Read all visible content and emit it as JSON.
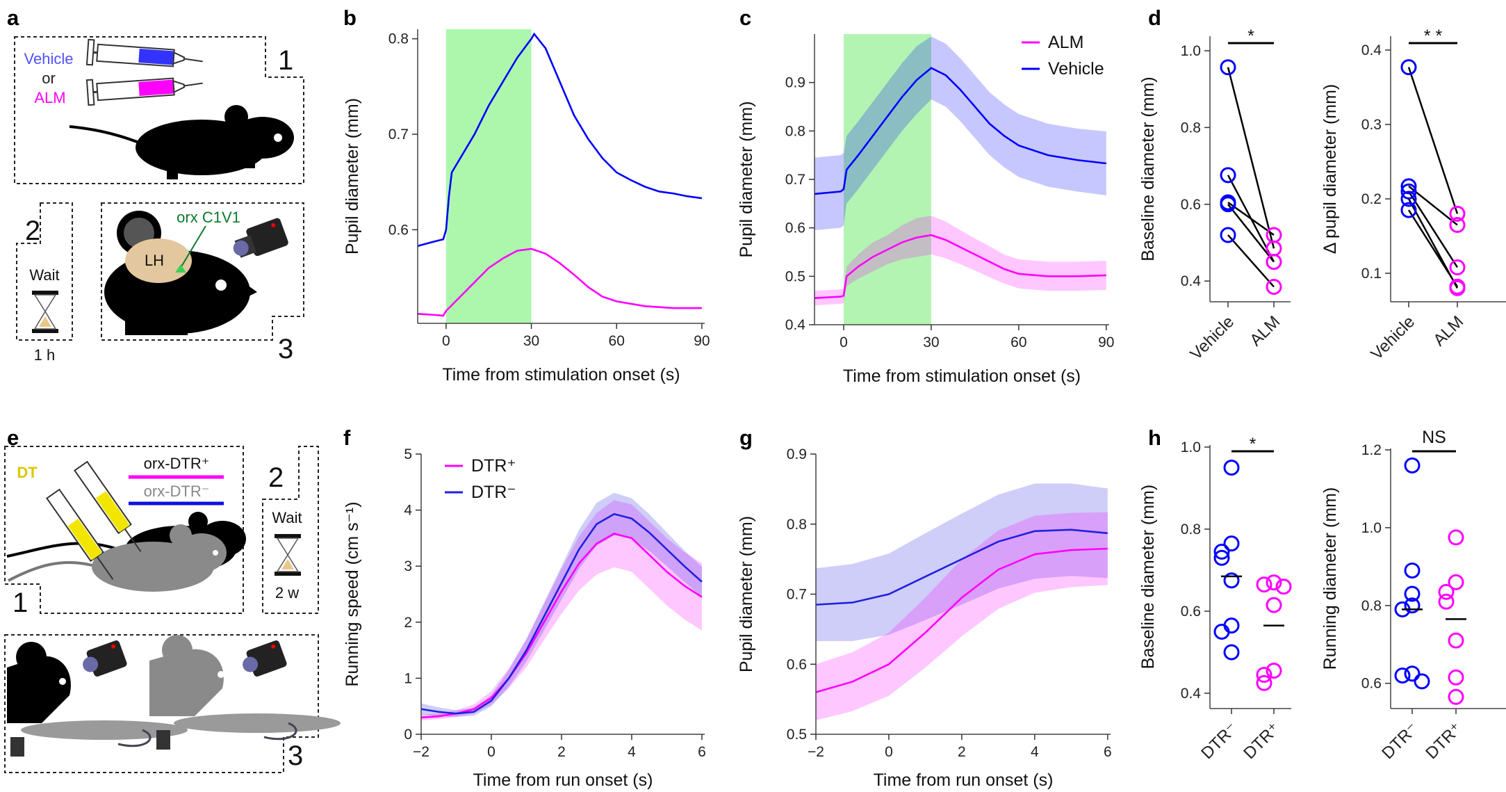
{
  "panel_letters": [
    "a",
    "b",
    "c",
    "d",
    "e",
    "f",
    "g",
    "h"
  ],
  "panel_a": {
    "step1_number": "1",
    "vehicle": "Vehicle",
    "or": "or",
    "alm": "ALM",
    "step2_number": "2",
    "wait": "Wait",
    "wait_time": "1 h",
    "step3_number": "3",
    "virus": "orx C1V1",
    "region": "LH",
    "colors": {
      "vehicle": "#5050ff",
      "alm": "#ff00ff",
      "virus": "#0a7a2a",
      "brain": "#e3c79e"
    }
  },
  "panel_e": {
    "drug": "DT",
    "group_pos": "orx-DTR⁺",
    "group_neg": "orx-DTR⁻",
    "step1_number": "1",
    "step2_number": "2",
    "wait": "Wait",
    "wait_time": "2 w",
    "step3_number": "3",
    "colors": {
      "drug": "#d9c800",
      "group_pos": "#ff00ff",
      "group_neg": "#1010e0"
    }
  },
  "chart_data": [
    {
      "panel": "b",
      "type": "line",
      "xlabel": "Time from stimulation onset (s)",
      "ylabel": "Pupil diameter (mm)",
      "xlim": [
        -10,
        91
      ],
      "ylim": [
        0.502,
        0.81
      ],
      "xticks": [
        "0",
        "30",
        "60",
        "90"
      ],
      "yticks": [
        "0.6",
        "0.7",
        "0.8"
      ],
      "shaded_interval": [
        0,
        30
      ],
      "shade_color": "#adf7ad",
      "series": [
        {
          "color": "#0000ff",
          "x": [
            -10,
            -5,
            -1,
            0,
            1,
            2,
            5,
            10,
            15,
            20,
            25,
            30,
            31,
            35,
            40,
            45,
            50,
            55,
            60,
            65,
            70,
            75,
            80,
            85,
            90
          ],
          "y": [
            0.583,
            0.587,
            0.59,
            0.6,
            0.635,
            0.66,
            0.675,
            0.7,
            0.73,
            0.755,
            0.78,
            0.8,
            0.805,
            0.79,
            0.755,
            0.72,
            0.695,
            0.675,
            0.66,
            0.652,
            0.645,
            0.64,
            0.638,
            0.635,
            0.633
          ]
        },
        {
          "color": "#ff00ff",
          "x": [
            -10,
            -5,
            -1,
            0,
            5,
            10,
            15,
            20,
            25,
            30,
            35,
            40,
            45,
            50,
            55,
            60,
            70,
            80,
            90
          ],
          "y": [
            0.512,
            0.511,
            0.51,
            0.515,
            0.53,
            0.545,
            0.56,
            0.57,
            0.578,
            0.58,
            0.575,
            0.565,
            0.553,
            0.54,
            0.53,
            0.525,
            0.52,
            0.518,
            0.518
          ]
        }
      ]
    },
    {
      "panel": "c",
      "type": "line",
      "xlabel": "Time from stimulation onset (s)",
      "ylabel": "Pupil diameter (mm)",
      "xlim": [
        -10,
        91
      ],
      "ylim": [
        0.4,
        1.0
      ],
      "xticks": [
        "0",
        "30",
        "60",
        "90"
      ],
      "yticks": [
        "0.4",
        "0.5",
        "0.6",
        "0.7",
        "0.8",
        "0.9"
      ],
      "shaded_interval": [
        0,
        30
      ],
      "shade_color": "#9af09a",
      "legend": "top-right",
      "series": [
        {
          "name": "ALM",
          "color": "#ff00ff",
          "x": [
            -10,
            -1,
            0,
            1,
            5,
            10,
            15,
            20,
            25,
            30,
            35,
            40,
            45,
            50,
            55,
            60,
            70,
            80,
            90
          ],
          "y": [
            0.455,
            0.458,
            0.46,
            0.5,
            0.52,
            0.54,
            0.555,
            0.57,
            0.58,
            0.585,
            0.575,
            0.56,
            0.545,
            0.53,
            0.515,
            0.505,
            0.5,
            0.5,
            0.502
          ],
          "err": [
            0.015,
            0.015,
            0.015,
            0.02,
            0.025,
            0.03,
            0.03,
            0.035,
            0.04,
            0.04,
            0.038,
            0.035,
            0.033,
            0.032,
            0.03,
            0.03,
            0.03,
            0.03,
            0.03
          ]
        },
        {
          "name": "Vehicle",
          "color": "#0000ff",
          "x": [
            -10,
            -1,
            0,
            1,
            5,
            10,
            15,
            20,
            25,
            30,
            35,
            40,
            45,
            50,
            55,
            60,
            70,
            80,
            90
          ],
          "y": [
            0.67,
            0.675,
            0.68,
            0.72,
            0.75,
            0.79,
            0.83,
            0.87,
            0.905,
            0.93,
            0.915,
            0.885,
            0.85,
            0.815,
            0.79,
            0.77,
            0.75,
            0.74,
            0.733
          ],
          "err": [
            0.075,
            0.075,
            0.075,
            0.07,
            0.07,
            0.07,
            0.07,
            0.07,
            0.07,
            0.065,
            0.065,
            0.065,
            0.065,
            0.065,
            0.065,
            0.065,
            0.065,
            0.065,
            0.066
          ]
        }
      ]
    },
    {
      "panel": "d",
      "type": "paired-scatter",
      "ylabel": "Baseline diameter (mm)",
      "ylim": [
        0.346,
        1.038
      ],
      "yticks": [
        "0.4",
        "0.6",
        "0.8",
        "1.0"
      ],
      "categories": [
        "Vehicle",
        "ALM"
      ],
      "colors": [
        "#0000ff",
        "#ff00ff"
      ],
      "pairs": [
        [
          0.957,
          0.485
        ],
        [
          0.676,
          0.45
        ],
        [
          0.605,
          0.52
        ],
        [
          0.6,
          0.45
        ],
        [
          0.52,
          0.385
        ]
      ],
      "significance": "*"
    },
    {
      "panel": "d",
      "type": "paired-scatter",
      "ylabel": "Δ pupil diameter (mm)",
      "ylim": [
        0.0617,
        0.4187
      ],
      "yticks": [
        "0.1",
        "0.2",
        "0.3",
        "0.4"
      ],
      "categories": [
        "Vehicle",
        "ALM"
      ],
      "colors": [
        "#0000ff",
        "#ff00ff"
      ],
      "pairs": [
        [
          0.377,
          0.18
        ],
        [
          0.217,
          0.165
        ],
        [
          0.21,
          0.108
        ],
        [
          0.2,
          0.08
        ],
        [
          0.185,
          0.082
        ]
      ],
      "significance": "* *"
    },
    {
      "panel": "f",
      "type": "line",
      "xlabel": "Time from run onset (s)",
      "ylabel": "Running speed (cm s⁻¹)",
      "xlim": [
        -2,
        6.08
      ],
      "ylim": [
        0,
        5
      ],
      "xticks": [
        "−2",
        "0",
        "2",
        "4",
        "6"
      ],
      "yticks": [
        "0",
        "1",
        "2",
        "3",
        "4",
        "5"
      ],
      "legend": "top-left",
      "series": [
        {
          "name": "DTR⁺",
          "color": "#ff00ff",
          "x": [
            -2,
            -1.5,
            -1,
            -0.5,
            0,
            0.5,
            1,
            1.5,
            2,
            2.5,
            3,
            3.5,
            4,
            4.5,
            5,
            5.5,
            6
          ],
          "y": [
            0.3,
            0.32,
            0.37,
            0.45,
            0.65,
            1.0,
            1.45,
            2.0,
            2.55,
            3.05,
            3.4,
            3.58,
            3.5,
            3.2,
            2.9,
            2.65,
            2.45
          ],
          "err": [
            0.05,
            0.05,
            0.06,
            0.08,
            0.12,
            0.18,
            0.25,
            0.32,
            0.4,
            0.48,
            0.55,
            0.6,
            0.6,
            0.6,
            0.6,
            0.6,
            0.6
          ]
        },
        {
          "name": "DTR⁻",
          "color": "#2020e0",
          "x": [
            -2,
            -1.5,
            -1,
            -0.5,
            0,
            0.5,
            1,
            1.5,
            2,
            2.5,
            3,
            3.5,
            4,
            4.5,
            5,
            5.5,
            6
          ],
          "y": [
            0.45,
            0.4,
            0.37,
            0.4,
            0.6,
            1.0,
            1.5,
            2.1,
            2.7,
            3.3,
            3.75,
            3.93,
            3.85,
            3.6,
            3.3,
            3.0,
            2.72
          ],
          "err": [
            0.1,
            0.08,
            0.06,
            0.07,
            0.1,
            0.15,
            0.2,
            0.25,
            0.3,
            0.35,
            0.38,
            0.38,
            0.36,
            0.33,
            0.3,
            0.28,
            0.27
          ]
        }
      ]
    },
    {
      "panel": "g",
      "type": "line",
      "xlabel": "Time from run onset (s)",
      "ylabel": "Pupil diameter (mm)",
      "xlim": [
        -2,
        6.08
      ],
      "ylim": [
        0.5,
        0.9
      ],
      "xticks": [
        "−2",
        "0",
        "2",
        "4",
        "6"
      ],
      "yticks": [
        "0.5",
        "0.6",
        "0.7",
        "0.8",
        "0.9"
      ],
      "series": [
        {
          "color": "#2020e0",
          "x": [
            -2,
            -1,
            0,
            1,
            2,
            3,
            4,
            5,
            6
          ],
          "y": [
            0.685,
            0.688,
            0.7,
            0.725,
            0.75,
            0.775,
            0.79,
            0.792,
            0.787
          ],
          "err": [
            0.052,
            0.055,
            0.058,
            0.062,
            0.065,
            0.067,
            0.068,
            0.066,
            0.064
          ]
        },
        {
          "color": "#ff00ff",
          "x": [
            -2,
            -1,
            0,
            1,
            2,
            3,
            4,
            5,
            6
          ],
          "y": [
            0.56,
            0.575,
            0.6,
            0.645,
            0.695,
            0.735,
            0.757,
            0.763,
            0.765
          ],
          "err": [
            0.04,
            0.042,
            0.045,
            0.05,
            0.055,
            0.056,
            0.055,
            0.053,
            0.052
          ]
        }
      ]
    },
    {
      "panel": "h",
      "type": "strip",
      "ylabel": "Baseline diameter (mm)",
      "ylim": [
        0.3627,
        1.005
      ],
      "yticks": [
        "0.4",
        "0.6",
        "0.8",
        "1.0"
      ],
      "categories": [
        "DTR⁻",
        "DTR⁺"
      ],
      "colors": [
        "#0000ff",
        "#ff00ff"
      ],
      "groups": [
        [
          0.95,
          0.765,
          0.745,
          0.73,
          0.675,
          0.565,
          0.55,
          0.5
        ],
        [
          0.67,
          0.665,
          0.66,
          0.615,
          0.455,
          0.445,
          0.425
        ]
      ],
      "means": [
        0.685,
        0.565
      ],
      "significance": "*"
    },
    {
      "panel": "h",
      "type": "strip",
      "ylabel": "Running diameter (mm)",
      "ylim": [
        0.5351,
        1.2036
      ],
      "yticks": [
        "0.6",
        "0.8",
        "1.0",
        "1.2"
      ],
      "categories": [
        "DTR⁻",
        "DTR⁺"
      ],
      "colors": [
        "#0000ff",
        "#ff00ff"
      ],
      "groups": [
        [
          1.16,
          0.89,
          0.83,
          0.8,
          0.79,
          0.625,
          0.62,
          0.605
        ],
        [
          0.975,
          0.86,
          0.835,
          0.81,
          0.71,
          0.615,
          0.565
        ]
      ],
      "means": [
        0.79,
        0.765
      ],
      "significance": "NS"
    }
  ]
}
